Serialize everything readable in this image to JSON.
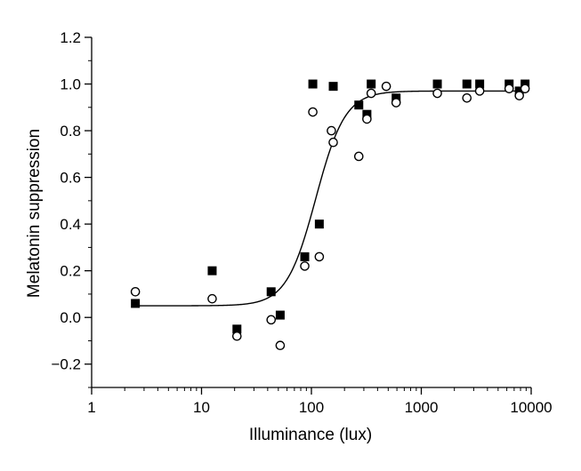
{
  "chart_data": {
    "type": "scatter",
    "title": "",
    "xlabel": "Illuminance (lux)",
    "ylabel": "Melatonin suppression",
    "xscale": "log",
    "xlim": [
      1,
      10000
    ],
    "ylim": [
      -0.3,
      1.2
    ],
    "x_ticks": [
      "1",
      "10",
      "100",
      "1000",
      "10000"
    ],
    "y_ticks": [
      "−0.2",
      "0.0",
      "0.2",
      "0.4",
      "0.6",
      "0.8",
      "1.0",
      "1.2"
    ],
    "grid": false,
    "legend": "none",
    "series": [
      {
        "marker": "filled-square",
        "color": "#000000",
        "points": [
          [
            2.5,
            0.06
          ],
          [
            12.5,
            0.2
          ],
          [
            21,
            -0.05
          ],
          [
            43,
            0.11
          ],
          [
            52,
            0.01
          ],
          [
            87,
            0.26
          ],
          [
            103,
            1.0
          ],
          [
            118,
            0.4
          ],
          [
            158,
            0.99
          ],
          [
            270,
            0.91
          ],
          [
            320,
            0.87
          ],
          [
            350,
            1.0
          ],
          [
            590,
            0.94
          ],
          [
            1400,
            1.0
          ],
          [
            2600,
            1.0
          ],
          [
            3400,
            1.0
          ],
          [
            6300,
            1.0
          ],
          [
            7800,
            0.97
          ],
          [
            8800,
            1.0
          ]
        ]
      },
      {
        "marker": "open-circle",
        "color": "#000000",
        "points": [
          [
            2.5,
            0.11
          ],
          [
            12.5,
            0.08
          ],
          [
            21,
            -0.08
          ],
          [
            43,
            -0.01
          ],
          [
            52,
            -0.12
          ],
          [
            87,
            0.22
          ],
          [
            103,
            0.88
          ],
          [
            118,
            0.26
          ],
          [
            152,
            0.8
          ],
          [
            158,
            0.75
          ],
          [
            270,
            0.69
          ],
          [
            320,
            0.85
          ],
          [
            350,
            0.96
          ],
          [
            480,
            0.99
          ],
          [
            590,
            0.92
          ],
          [
            1400,
            0.96
          ],
          [
            2600,
            0.94
          ],
          [
            3400,
            0.97
          ],
          [
            6300,
            0.98
          ],
          [
            7800,
            0.95
          ],
          [
            8800,
            0.98
          ]
        ]
      }
    ],
    "fit_curve": {
      "type": "sigmoid",
      "bottom": 0.05,
      "top": 0.97,
      "log10_midpoint": 2.04,
      "slope": 7.5,
      "color": "#000000"
    }
  }
}
